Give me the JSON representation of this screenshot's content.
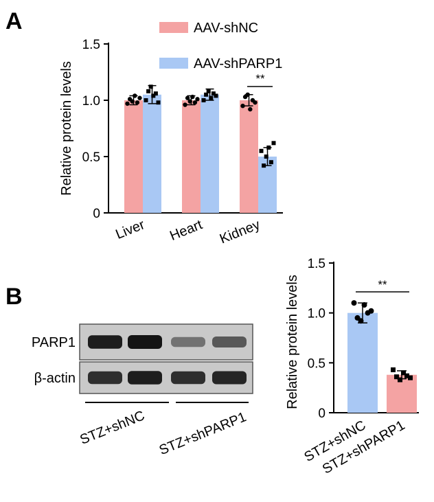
{
  "panels": {
    "a": "A",
    "b": "B"
  },
  "colors": {
    "shNC": "#f4a3a3",
    "shPARP1": "#a9c8f4"
  },
  "chart_data": [
    {
      "type": "bar",
      "categories": [
        "Liver",
        "Heart",
        "Kidney"
      ],
      "series": [
        {
          "name": "AAV-shNC",
          "values": [
            1.0,
            1.0,
            1.0
          ],
          "errors": [
            0.04,
            0.04,
            0.05
          ],
          "points": [
            [
              0.97,
              1.01,
              0.99,
              1.04,
              0.98,
              1.02
            ],
            [
              0.96,
              1.02,
              0.99,
              1.03,
              0.98,
              1.01
            ],
            [
              0.95,
              1.03,
              1.05,
              0.92,
              1.0,
              0.98
            ]
          ]
        },
        {
          "name": "AAV-shPARP1",
          "values": [
            1.05,
            1.05,
            0.5
          ],
          "errors": [
            0.08,
            0.05,
            0.08
          ],
          "points": [
            [
              1.0,
              1.08,
              1.12,
              1.04,
              1.06,
              0.98
            ],
            [
              1.0,
              1.05,
              1.08,
              1.02,
              1.06,
              1.04
            ],
            [
              0.55,
              0.42,
              0.5,
              0.58,
              0.45,
              0.62
            ]
          ]
        }
      ],
      "significance": [
        {
          "category": "Kidney",
          "label": "**"
        }
      ],
      "title": "",
      "xlabel": "",
      "ylabel": "Relative protein levels",
      "ylim": [
        0,
        1.5
      ],
      "yticks": [
        "0",
        "0.5",
        "1.0",
        "1.5"
      ],
      "legend": "top"
    },
    {
      "type": "bar",
      "categories": [
        "STZ+shNC",
        "STZ+shPARP1"
      ],
      "values": [
        1.0,
        0.38
      ],
      "errors": [
        0.1,
        0.04
      ],
      "points": [
        [
          1.1,
          0.95,
          0.92,
          1.08,
          1.0,
          1.02
        ],
        [
          0.43,
          0.36,
          0.33,
          0.4,
          0.37,
          0.35
        ]
      ],
      "significance": [
        {
          "label": "**"
        }
      ],
      "title": "",
      "xlabel": "",
      "ylabel": "Relative protein levels",
      "ylim": [
        0,
        1.5
      ],
      "yticks": [
        "0",
        "0.5",
        "1.0",
        "1.5"
      ]
    }
  ],
  "blot": {
    "rows": [
      {
        "label": "PARP1",
        "intensities": [
          0.95,
          1.0,
          0.45,
          0.6
        ]
      },
      {
        "label": "β-actin",
        "intensities": [
          0.85,
          0.95,
          0.85,
          0.9
        ]
      }
    ],
    "groups": [
      "STZ+shNC",
      "STZ+shPARP1"
    ]
  }
}
